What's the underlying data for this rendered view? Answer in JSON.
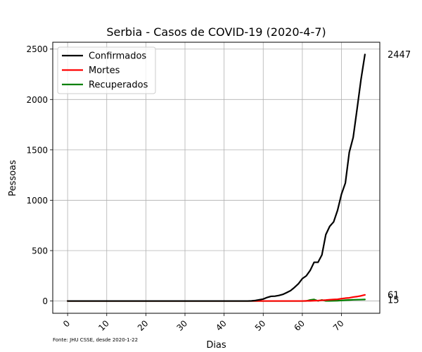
{
  "chart_data": {
    "type": "line",
    "title": "Serbia - Casos de COVID-19 (2020-4-7)",
    "xlabel": "Dias",
    "ylabel": "Pessoas",
    "xlim": [
      -3.8,
      79.8
    ],
    "ylim": [
      -122,
      2568
    ],
    "xticks": [
      0,
      10,
      20,
      30,
      40,
      50,
      60,
      70
    ],
    "yticks": [
      0,
      500,
      1000,
      1500,
      2000,
      2500
    ],
    "grid": true,
    "legend_position": "top-left",
    "source_note": "Fonte: JHU CSSE, desde 2020-1-22",
    "series": [
      {
        "name": "Confirmados",
        "color": "#000000",
        "x": [
          0,
          44,
          45,
          46,
          47,
          48,
          49,
          50,
          51,
          52,
          53,
          54,
          55,
          56,
          57,
          58,
          59,
          60,
          61,
          62,
          63,
          64,
          65,
          66,
          67,
          68,
          69,
          70,
          71,
          72,
          73,
          74,
          75,
          76
        ],
        "values": [
          0,
          0,
          0,
          0,
          1,
          5,
          12,
          19,
          35,
          46,
          48,
          55,
          65,
          83,
          103,
          135,
          171,
          222,
          249,
          303,
          384,
          384,
          457,
          659,
          741,
          785,
          900,
          1060,
          1171,
          1476,
          1624,
          1908,
          2200,
          2447
        ],
        "end_label": "2447"
      },
      {
        "name": "Mortes",
        "color": "#ff0000",
        "x": [
          0,
          60,
          61,
          62,
          63,
          64,
          65,
          66,
          67,
          68,
          69,
          70,
          71,
          72,
          73,
          74,
          75,
          76
        ],
        "values": [
          0,
          0,
          1,
          1,
          3,
          4,
          7,
          9,
          13,
          15,
          17,
          23,
          28,
          31,
          39,
          44,
          51,
          61
        ],
        "end_label": "61"
      },
      {
        "name": "Recuperados",
        "color": "#008000",
        "x": [
          0,
          61,
          62,
          63,
          64,
          65,
          66,
          67,
          68,
          69,
          70,
          71,
          72,
          73,
          74,
          75,
          76
        ],
        "values": [
          0,
          0,
          10,
          15,
          1,
          10,
          1,
          1,
          2,
          3,
          5,
          8,
          10,
          12,
          13,
          14,
          15
        ],
        "end_label": "15"
      }
    ]
  }
}
